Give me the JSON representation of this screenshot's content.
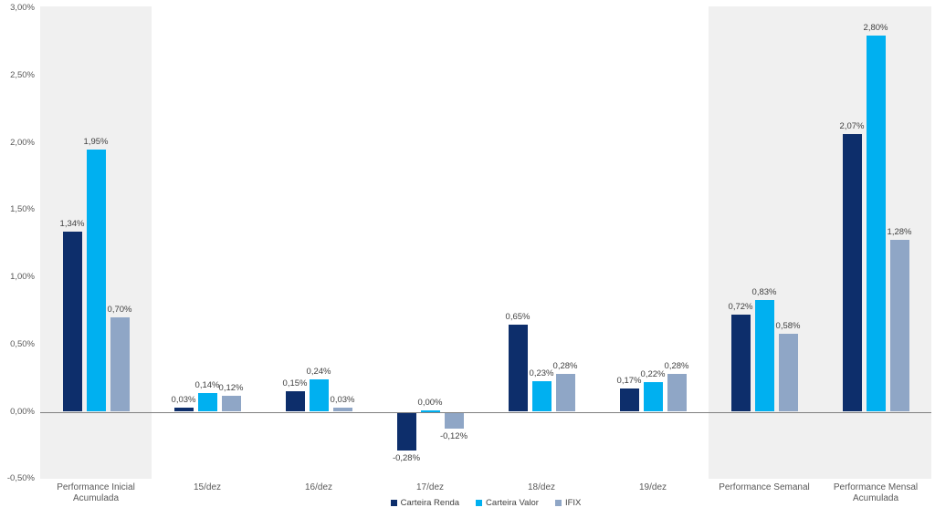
{
  "chart_data": {
    "type": "bar",
    "title": "",
    "xlabel": "",
    "ylabel": "",
    "grid": false,
    "legend_position": "bottom",
    "categories": [
      "Performance Inicial Acumulada",
      "15/dez",
      "16/dez",
      "17/dez",
      "18/dez",
      "19/dez",
      "Performance Semanal",
      "Performance Mensal Acumulada"
    ],
    "series": [
      {
        "name": "Carteira Renda",
        "color": "#0D2E6B",
        "values": [
          1.34,
          0.03,
          0.15,
          -0.28,
          0.65,
          0.17,
          0.72,
          2.07
        ],
        "labels": [
          "1,34%",
          "0,03%",
          "0,15%",
          "-0,28%",
          "0,65%",
          "0,17%",
          "0,72%",
          "2,07%"
        ]
      },
      {
        "name": "Carteira Valor",
        "color": "#00B0F0",
        "values": [
          1.95,
          0.14,
          0.24,
          0.0,
          0.23,
          0.22,
          0.83,
          2.8
        ],
        "labels": [
          "1,95%",
          "0,14%",
          "0,24%",
          "0,00%",
          "0,23%",
          "0,22%",
          "0,83%",
          "2,80%"
        ]
      },
      {
        "name": "IFIX",
        "color": "#8FA6C6",
        "values": [
          0.7,
          0.12,
          0.03,
          -0.12,
          0.28,
          0.28,
          0.58,
          1.28
        ],
        "labels": [
          "0,70%",
          "0,12%",
          "0,03%",
          "-0,12%",
          "0,28%",
          "0,28%",
          "0,58%",
          "1,28%"
        ]
      }
    ],
    "y_axis": {
      "min": -0.5,
      "max": 3.0,
      "ticks": [
        {
          "label": "3,00%",
          "value": 3.0
        },
        {
          "label": "2,50%",
          "value": 2.5
        },
        {
          "label": "2,00%",
          "value": 2.0
        },
        {
          "label": "1,50%",
          "value": 1.5
        },
        {
          "label": "1,00%",
          "value": 1.0
        },
        {
          "label": "0,50%",
          "value": 0.5
        },
        {
          "label": "0,00%",
          "value": 0.0
        },
        {
          "label": "-0,50%",
          "value": -0.5
        }
      ]
    },
    "highlight_bands": [
      {
        "from": 0,
        "to": 0
      },
      {
        "from": 6,
        "to": 7
      }
    ],
    "colors": {
      "background": "#FFFFFF",
      "band": "#F0F0F0",
      "axis_line": "#808080",
      "tick_text": "#595959",
      "category_text": "#595959",
      "data_label_text": "#404040"
    }
  }
}
